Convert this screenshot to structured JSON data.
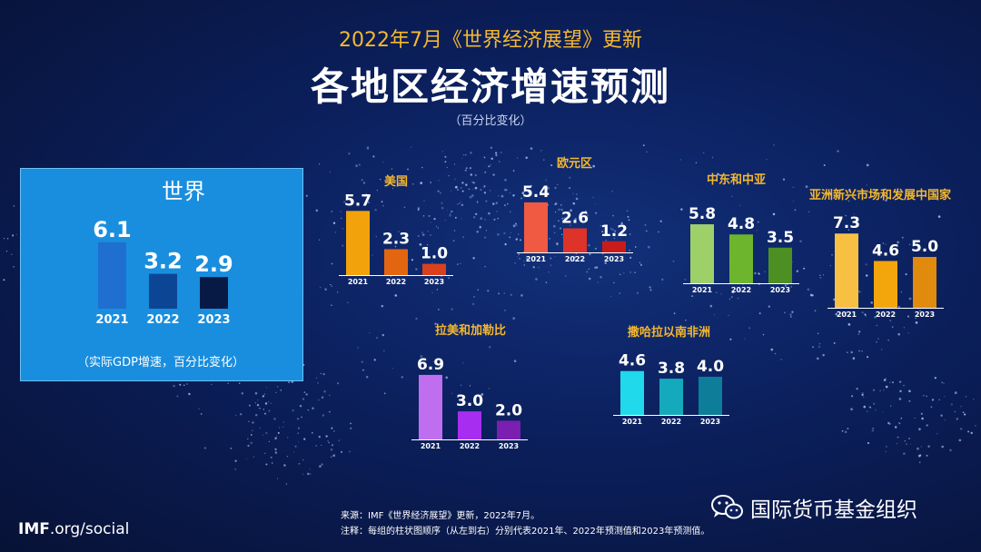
{
  "header": {
    "subtitle": "2022年7月《世界经济展望》更新",
    "title": "各地区经济增速预测",
    "unit": "（百分比变化）"
  },
  "colors": {
    "background": "#0b1f5c",
    "header_accent": "#f5b82e",
    "world_panel": "#1a8ede"
  },
  "chart_data": [
    {
      "id": "world",
      "type": "bar",
      "title": "世界",
      "categories": [
        "2021",
        "2022",
        "2023"
      ],
      "values": [
        6.1,
        3.2,
        2.9
      ],
      "colors": [
        "#1f6fd0",
        "#0d4595",
        "#061a45"
      ],
      "note": "（实际GDP增速，百分比变化）"
    },
    {
      "id": "us",
      "type": "bar",
      "title": "美国",
      "categories": [
        "2021",
        "2022",
        "2023"
      ],
      "values": [
        5.7,
        2.3,
        1.0
      ],
      "colors": [
        "#f2a20a",
        "#e2660f",
        "#d9411c"
      ]
    },
    {
      "id": "euro",
      "type": "bar",
      "title": "欧元区",
      "categories": [
        "2021",
        "2022",
        "2023"
      ],
      "values": [
        5.4,
        2.6,
        1.2
      ],
      "colors": [
        "#f05a42",
        "#dd3328",
        "#c81c1c"
      ]
    },
    {
      "id": "mena",
      "type": "bar",
      "title": "中东和中亚",
      "categories": [
        "2021",
        "2022",
        "2023"
      ],
      "values": [
        5.8,
        4.8,
        3.5
      ],
      "colors": [
        "#9ed06a",
        "#6cb52d",
        "#4e8f24"
      ]
    },
    {
      "id": "asia",
      "type": "bar",
      "title": "亚洲新兴市场和发展中国家",
      "categories": [
        "2021",
        "2022",
        "2023"
      ],
      "values": [
        7.3,
        4.6,
        5.0
      ],
      "colors": [
        "#f8c043",
        "#f2a60c",
        "#e08a0e"
      ]
    },
    {
      "id": "latam",
      "type": "bar",
      "title": "拉美和加勒比",
      "categories": [
        "2021",
        "2022",
        "2023"
      ],
      "values": [
        6.9,
        3.0,
        2.0
      ],
      "colors": [
        "#c06ef0",
        "#a72ef0",
        "#7a1fb0"
      ]
    },
    {
      "id": "ssa",
      "type": "bar",
      "title": "撒哈拉以南非洲",
      "categories": [
        "2021",
        "2022",
        "2023"
      ],
      "values": [
        4.6,
        3.8,
        4.0
      ],
      "colors": [
        "#20d9ea",
        "#14a9bc",
        "#0d7d99"
      ]
    }
  ],
  "footer": {
    "logo_bold": "IMF",
    "logo_rest": ".org/social",
    "source_line": "来源：IMF《世界经济展望》更新，2022年7月。",
    "note_line": "注释：每组的柱状图顺序（从左到右）分别代表2021年、2022年预测值和2023年预测值。",
    "brand_text": "国际货币基金组织",
    "brand_icon": "wechat-icon"
  }
}
